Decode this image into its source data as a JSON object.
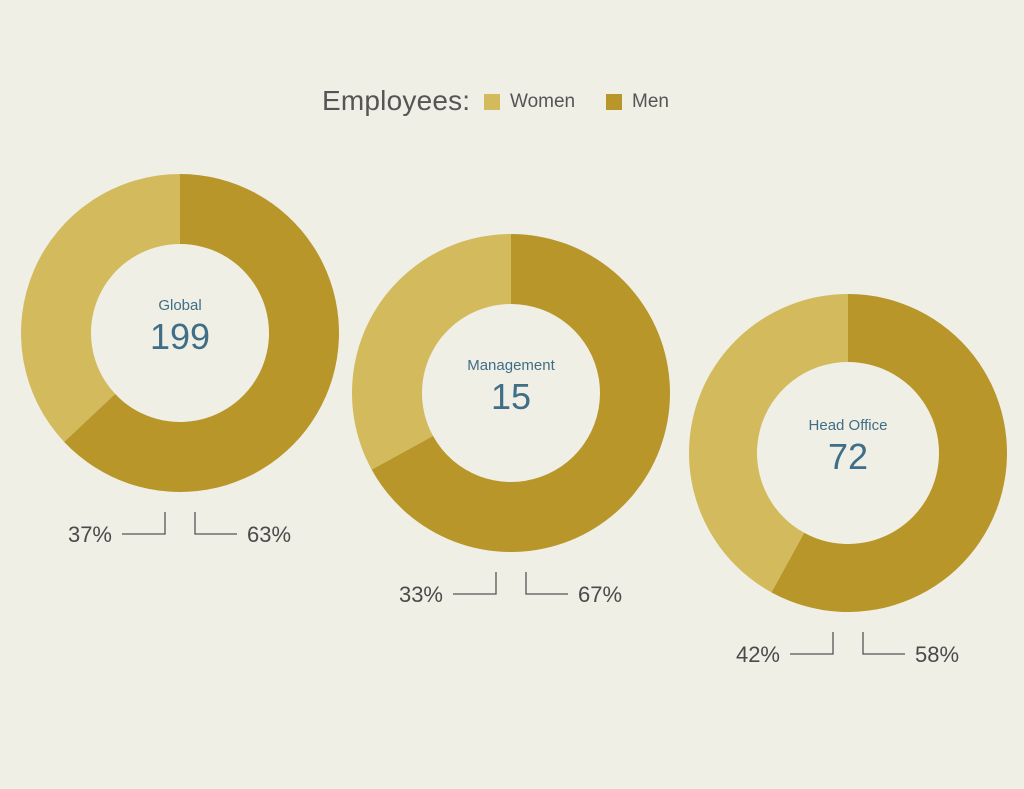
{
  "legend": {
    "title": "Employees:",
    "items": [
      {
        "label": "Women",
        "color": "#d3bb5d"
      },
      {
        "label": "Men",
        "color": "#b89629"
      }
    ]
  },
  "colors": {
    "women": "#d3bb5d",
    "men": "#b89629",
    "background": "#efefe6",
    "center_text": "#3f6e86",
    "percent_text": "#4a4a4a",
    "leader_line": "#555555"
  },
  "chart_data": [
    {
      "type": "pie",
      "donut": true,
      "name": "Global",
      "total": "199",
      "slices": [
        {
          "category": "Women",
          "value": 37,
          "label": "37%"
        },
        {
          "category": "Men",
          "value": 63,
          "label": "63%"
        }
      ]
    },
    {
      "type": "pie",
      "donut": true,
      "name": "Management",
      "total": "15",
      "slices": [
        {
          "category": "Women",
          "value": 33,
          "label": "33%"
        },
        {
          "category": "Men",
          "value": 67,
          "label": "67%"
        }
      ]
    },
    {
      "type": "pie",
      "donut": true,
      "name": "Head Office",
      "total": "72",
      "slices": [
        {
          "category": "Women",
          "value": 42,
          "label": "42%"
        },
        {
          "category": "Men",
          "value": 58,
          "label": "58%"
        }
      ]
    }
  ]
}
